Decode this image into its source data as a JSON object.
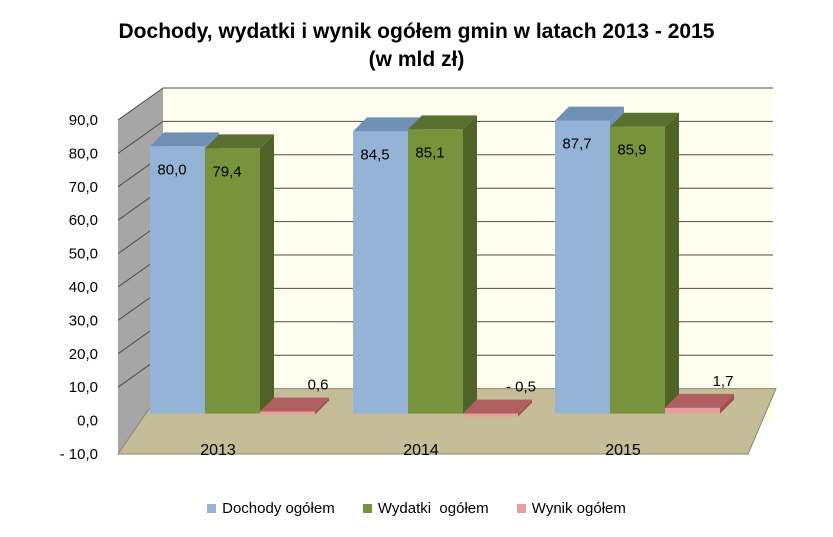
{
  "title_line1": "Dochody, wydatki i wynik ogółem gmin w latach 2013 - 2015",
  "title_line2": "(w mld zł)",
  "chart_data": {
    "type": "bar",
    "title": "Dochody, wydatki i wynik ogółem gmin w latach 2013 - 2015 (w mld zł)",
    "categories": [
      "2013",
      "2014",
      "2015"
    ],
    "series": [
      {
        "name": "Dochody ogółem",
        "values": [
          80.0,
          84.5,
          87.7
        ],
        "labels": [
          "80,0",
          "84,5",
          "87,7"
        ],
        "color": "#95b3d7",
        "top": "#6f8fb5",
        "side": "#7292bd"
      },
      {
        "name": "Wydatki  ogółem",
        "values": [
          79.4,
          85.1,
          85.9
        ],
        "labels": [
          "79,4",
          "85,1",
          "85,9"
        ],
        "color": "#77933c",
        "top": "#5a7030",
        "side": "#4f6228"
      },
      {
        "name": "Wynik ogółem",
        "values": [
          0.6,
          -0.5,
          1.7
        ],
        "labels": [
          "0,6",
          "- 0,5",
          "1,7"
        ],
        "color": "#e6a0a0",
        "top": "#b06060",
        "side": "#a05050"
      }
    ],
    "ylim": [
      -10,
      90
    ],
    "yticks": [
      -10,
      0,
      10,
      20,
      30,
      40,
      50,
      60,
      70,
      80,
      90
    ],
    "ytick_labels": [
      "- 10,0",
      "0,0",
      "10,0",
      "20,0",
      "30,0",
      "40,0",
      "50,0",
      "60,0",
      "70,0",
      "80,0",
      "90,0"
    ],
    "grid": true,
    "legend": "bottom",
    "colors": {
      "wall": "#fffff0",
      "floor": "#c4bd97",
      "side_wall": "#a6a6a6"
    }
  }
}
